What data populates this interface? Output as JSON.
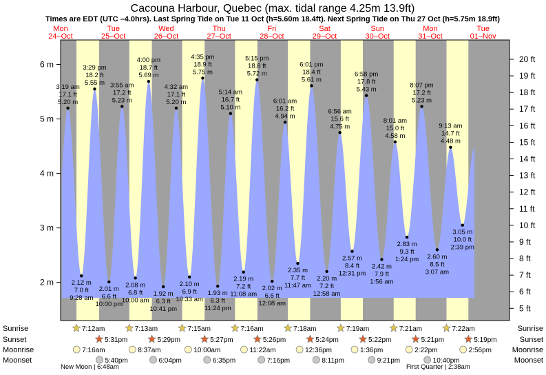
{
  "header": {
    "title": "Cacouna Harbour, Quebec (max. tidal range 4.25m 13.9ft)",
    "subtitle": "Times are EDT (UTC –4.0hrs). Last Spring Tide on Tue 11 Oct (h=5.60m 18.4ft). Next Spring Tide on Thu 27 Oct (h=5.75m 18.9ft)"
  },
  "days": [
    {
      "dow": "Mon",
      "date": "24–Oct"
    },
    {
      "dow": "Tue",
      "date": "25–Oct"
    },
    {
      "dow": "Wed",
      "date": "26–Oct"
    },
    {
      "dow": "Thu",
      "date": "27–Oct"
    },
    {
      "dow": "Fri",
      "date": "28–Oct"
    },
    {
      "dow": "Sat",
      "date": "29–Oct"
    },
    {
      "dow": "Sun",
      "date": "30–Oct"
    },
    {
      "dow": "Mon",
      "date": "31–Oct"
    },
    {
      "dow": "Tue",
      "date": "01–Nov"
    }
  ],
  "row_labels": {
    "sunrise": "Sunrise",
    "sunset": "Sunset",
    "moonrise": "Moonrise",
    "moonset": "Moonset"
  },
  "sunrise": [
    "7:12am",
    "7:13am",
    "7:15am",
    "7:16am",
    "7:18am",
    "7:19am",
    "7:21am",
    "7:22am"
  ],
  "sunset": [
    "5:31pm",
    "5:29pm",
    "5:27pm",
    "5:26pm",
    "5:24pm",
    "5:22pm",
    "5:21pm",
    "5:19pm"
  ],
  "moonrise": [
    "7:16am",
    "8:37am",
    "10:00am",
    "11:22am",
    "12:36pm",
    "1:36pm",
    "2:22pm",
    "2:56pm"
  ],
  "moonset": [
    "5:40pm",
    "6:04pm",
    "6:35pm",
    "7:16pm",
    "8:11pm",
    "9:21pm",
    "10:40pm"
  ],
  "moon_phases": {
    "new_moon": "New Moon | 6:48am",
    "first_quarter": "First Quarter | 2:38am"
  },
  "colors": {
    "night": "#a0a0a0",
    "day": "#ffffc8",
    "water": "#9aa8ff",
    "star_fill": "#e6c84a",
    "sunset_fill": "#e0602a",
    "moon_fill": "#fff6c0",
    "moonset_fill": "#c8c8c8"
  },
  "chart_data": {
    "type": "area",
    "title": "Cacouna Harbour, Quebec (max. tidal range 4.25m 13.9ft)",
    "ylabel_left": "m",
    "ylabel_right": "ft",
    "ylim_m": [
      1.3,
      6.45
    ],
    "yticks_m": [
      2,
      3,
      4,
      5,
      6
    ],
    "yticks_ft": [
      5,
      6,
      7,
      8,
      9,
      10,
      11,
      12,
      13,
      14,
      15,
      16,
      17,
      18,
      19,
      20
    ],
    "grid": false,
    "tides": [
      {
        "type": "high",
        "time": "3:19 am",
        "m": "5.20 m",
        "ft": "17.1 ft",
        "h": 5.2
      },
      {
        "type": "low",
        "time": "9:28 am",
        "m": "2.12 m",
        "ft": "7.0 ft",
        "h": 2.12
      },
      {
        "type": "high",
        "time": "3:29 pm",
        "m": "5.55 m",
        "ft": "18.2 ft",
        "h": 5.55
      },
      {
        "type": "low",
        "time": "10:00 pm",
        "m": "2.01 m",
        "ft": "6.6 ft",
        "h": 2.01
      },
      {
        "type": "high",
        "time": "3:55 am",
        "m": "5.23 m",
        "ft": "17.2 ft",
        "h": 5.23
      },
      {
        "type": "low",
        "time": "10:00 am",
        "m": "2.08 m",
        "ft": "6.8 ft",
        "h": 2.08
      },
      {
        "type": "high",
        "time": "4:00 pm",
        "m": "5.69 m",
        "ft": "18.7 ft",
        "h": 5.69
      },
      {
        "type": "low",
        "time": "10:41 pm",
        "m": "1.92 m",
        "ft": "6.3 ft",
        "h": 1.92
      },
      {
        "type": "high",
        "time": "4:32 am",
        "m": "5.20 m",
        "ft": "17.1 ft",
        "h": 5.2
      },
      {
        "type": "low",
        "time": "10:33 am",
        "m": "2.10 m",
        "ft": "6.9 ft",
        "h": 2.1
      },
      {
        "type": "high",
        "time": "4:35 pm",
        "m": "5.75 m",
        "ft": "18.9 ft",
        "h": 5.75
      },
      {
        "type": "low",
        "time": "11:24 pm",
        "m": "1.93 m",
        "ft": "6.3 ft",
        "h": 1.93
      },
      {
        "type": "high",
        "time": "5:14 am",
        "m": "5.10 m",
        "ft": "16.7 ft",
        "h": 5.1
      },
      {
        "type": "low",
        "time": "11:08 am",
        "m": "2.19 m",
        "ft": "7.2 ft",
        "h": 2.19
      },
      {
        "type": "high",
        "time": "5:15 pm",
        "m": "5.72 m",
        "ft": "18.8 ft",
        "h": 5.72
      },
      {
        "type": "low",
        "time": "12:08 am",
        "m": "2.02 m",
        "ft": "6.6 ft",
        "h": 2.02
      },
      {
        "type": "high",
        "time": "6:01 am",
        "m": "4.94 m",
        "ft": "16.2 ft",
        "h": 4.94
      },
      {
        "type": "low",
        "time": "11:47 am",
        "m": "2.35 m",
        "ft": "7.7 ft",
        "h": 2.35
      },
      {
        "type": "high",
        "time": "6:01 pm",
        "m": "5.61 m",
        "ft": "18.4 ft",
        "h": 5.61
      },
      {
        "type": "low",
        "time": "12:58 am",
        "m": "2.20 m",
        "ft": "7.2 ft",
        "h": 2.2
      },
      {
        "type": "high",
        "time": "6:56 am",
        "m": "4.75 m",
        "ft": "15.6 ft",
        "h": 4.75
      },
      {
        "type": "low",
        "time": "12:31 pm",
        "m": "2.57 m",
        "ft": "8.4 ft",
        "h": 2.57
      },
      {
        "type": "high",
        "time": "6:58 pm",
        "m": "5.43 m",
        "ft": "17.8 ft",
        "h": 5.43
      },
      {
        "type": "low",
        "time": "1:56 am",
        "m": "2.42 m",
        "ft": "7.9 ft",
        "h": 2.42
      },
      {
        "type": "high",
        "time": "8:01 am",
        "m": "4.58 m",
        "ft": "15.0 ft",
        "h": 4.58
      },
      {
        "type": "low",
        "time": "1:24 pm",
        "m": "2.83 m",
        "ft": "9.3 ft",
        "h": 2.83
      },
      {
        "type": "high",
        "time": "8:07 pm",
        "m": "5.23 m",
        "ft": "17.2 ft",
        "h": 5.23
      },
      {
        "type": "low",
        "time": "3:07 am",
        "m": "2.60 m",
        "ft": "8.5 ft",
        "h": 2.6
      },
      {
        "type": "high",
        "time": "9:13 am",
        "m": "4.48 m",
        "ft": "14.7 ft",
        "h": 4.48
      },
      {
        "type": "low",
        "time": "2:39 pm",
        "m": "3.05 m",
        "ft": "10.0 ft",
        "h": 3.05
      }
    ]
  }
}
